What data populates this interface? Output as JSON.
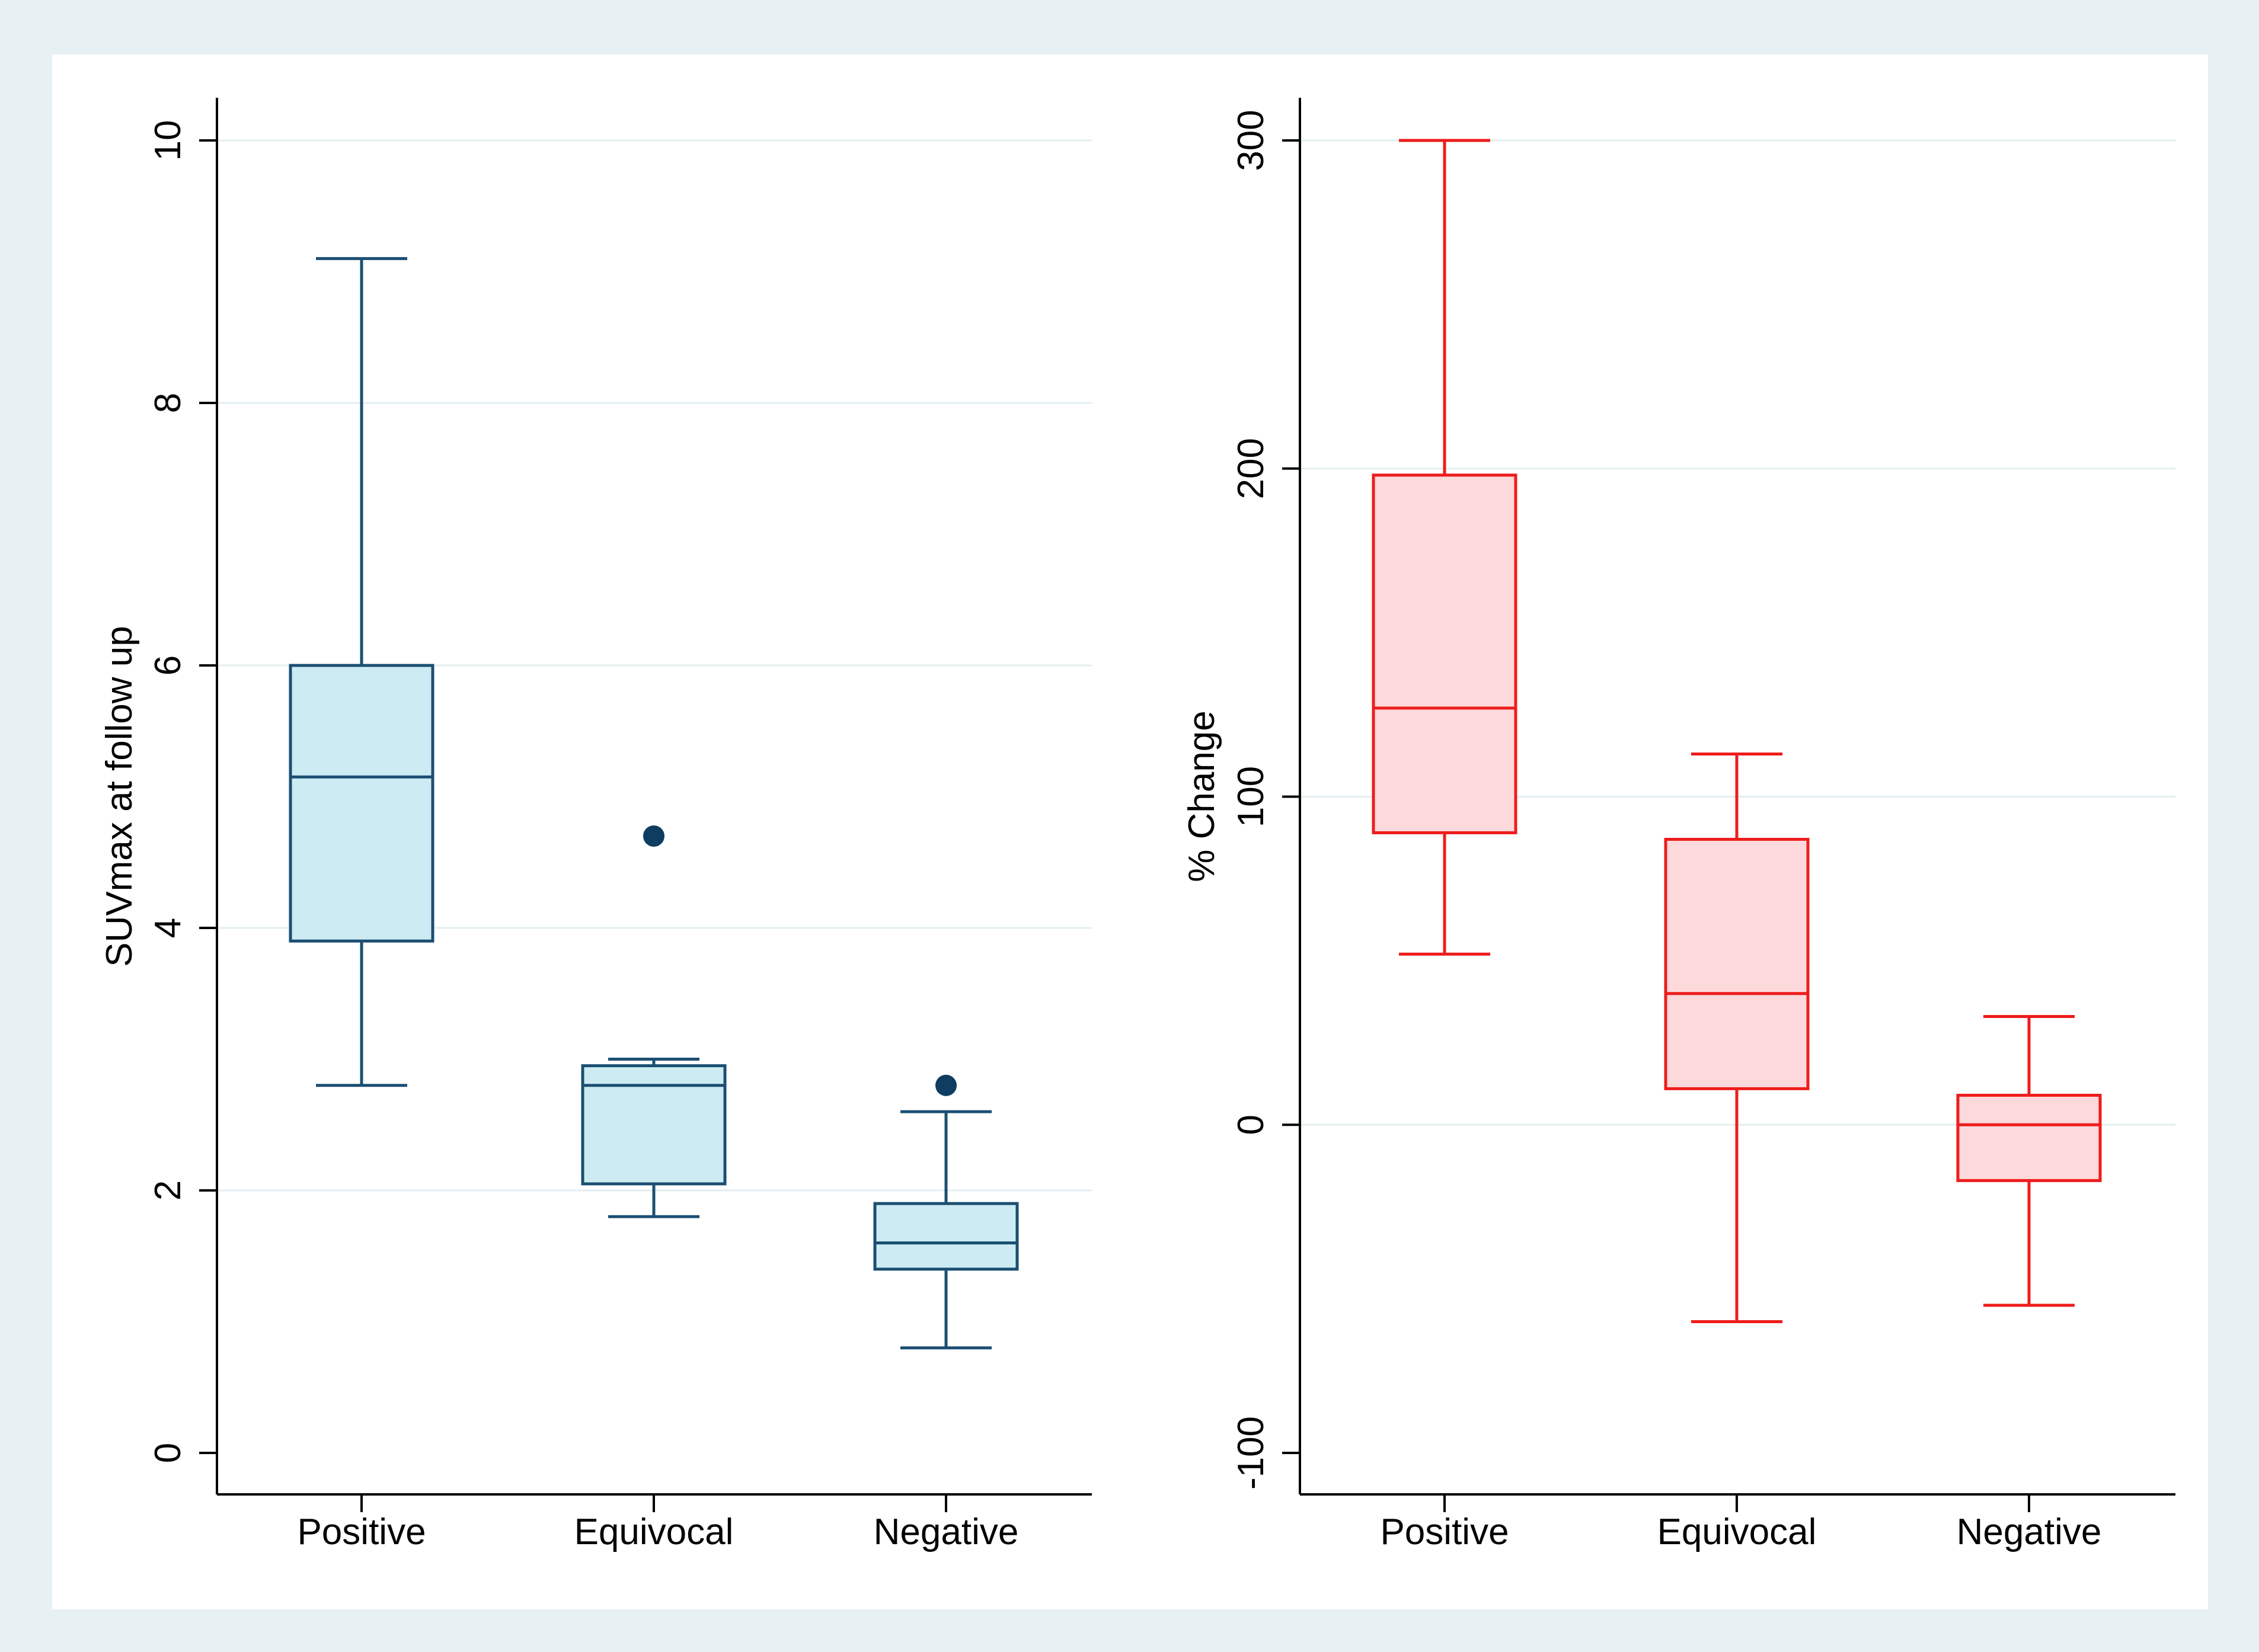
{
  "chart_data": [
    {
      "type": "boxplot",
      "title": "",
      "xlabel": "",
      "ylabel": "SUVmax at follow up",
      "categories": [
        "Positive",
        "Equivocal",
        "Negative"
      ],
      "ylim": [
        0,
        10
      ],
      "yticks": [
        "0",
        "2",
        "4",
        "6",
        "8",
        "10"
      ],
      "grid": true,
      "colors": {
        "stroke": "#1b4f72",
        "fill": "#cdebf2",
        "outlier": "#0e3d61"
      },
      "boxes": [
        {
          "category": "Positive",
          "whisker_low": 2.8,
          "q1": 3.9,
          "median": 5.15,
          "q3": 6.0,
          "whisker_high": 9.1,
          "outliers": []
        },
        {
          "category": "Equivocal",
          "whisker_low": 1.8,
          "q1": 2.05,
          "median": 2.8,
          "q3": 2.95,
          "whisker_high": 3.0,
          "outliers": [
            4.7
          ]
        },
        {
          "category": "Negative",
          "whisker_low": 0.8,
          "q1": 1.4,
          "median": 1.6,
          "q3": 1.9,
          "whisker_high": 2.6,
          "outliers": [
            2.8
          ]
        }
      ]
    },
    {
      "type": "boxplot",
      "title": "",
      "xlabel": "",
      "ylabel": "% Change",
      "categories": [
        "Positive",
        "Equivocal",
        "Negative"
      ],
      "ylim": [
        -100,
        300
      ],
      "yticks": [
        "-100",
        "0",
        "100",
        "200",
        "300"
      ],
      "grid": true,
      "colors": {
        "stroke": "#ee1c1c",
        "fill": "#fdd9db",
        "outlier": "#ee1c1c"
      },
      "boxes": [
        {
          "category": "Positive",
          "whisker_low": 52,
          "q1": 89,
          "median": 127,
          "q3": 198,
          "whisker_high": 300,
          "outliers": []
        },
        {
          "category": "Equivocal",
          "whisker_low": -60,
          "q1": 11,
          "median": 40,
          "q3": 87,
          "whisker_high": 113,
          "outliers": []
        },
        {
          "category": "Negative",
          "whisker_low": -55,
          "q1": -17,
          "median": 0,
          "q3": 9,
          "whisker_high": 33,
          "outliers": []
        }
      ]
    }
  ]
}
